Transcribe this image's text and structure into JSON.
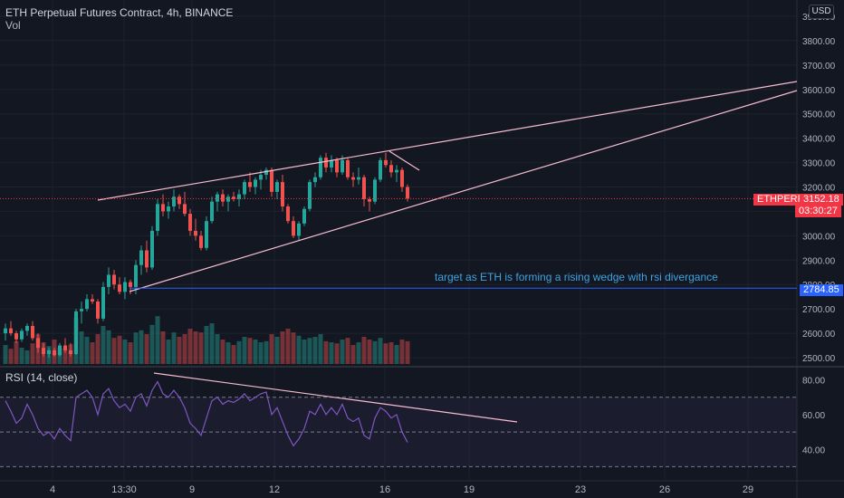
{
  "header": {
    "title": "ETH Perpetual Futures Contract, 4h, BINANCE",
    "volume_label": "Vol"
  },
  "rsi": {
    "label": "RSI (14, close)"
  },
  "currency": "USD",
  "annotation": "target as ETH is forming a rising wedge with rsi divergance",
  "price_axis": [
    "3900.00",
    "3800.00",
    "3700.00",
    "3600.00",
    "3500.00",
    "3400.00",
    "3300.00",
    "3200.00",
    "3100.00",
    "3000.00",
    "2900.00",
    "2800.00",
    "2700.00",
    "2600.00",
    "2500.00"
  ],
  "rsi_axis": [
    "80.00",
    "60.00",
    "40.00"
  ],
  "time_axis": [
    "4",
    "13:30",
    "9",
    "12",
    "16",
    "19",
    "23",
    "26",
    "29"
  ],
  "last_price": {
    "symbol": "ETHPERP",
    "price": "3152.18",
    "countdown": "03:30:27",
    "color": "#f23645"
  },
  "target": {
    "price": "2784.85",
    "color": "#2962ff"
  },
  "colors": {
    "up": "#26a69a",
    "down": "#ef5350",
    "rsi_line": "#7e57c2",
    "trendline": "#f8bbd0",
    "background": "#131722"
  },
  "chart_data": {
    "type": "candlestick",
    "price_ylim": [
      2500,
      3900
    ],
    "candles": [
      [
        2600,
        2640,
        2570,
        2620
      ],
      [
        2620,
        2650,
        2590,
        2600
      ],
      [
        2600,
        2610,
        2560,
        2575
      ],
      [
        2575,
        2620,
        2565,
        2610
      ],
      [
        2610,
        2640,
        2590,
        2630
      ],
      [
        2630,
        2650,
        2570,
        2580
      ],
      [
        2580,
        2600,
        2520,
        2540
      ],
      [
        2540,
        2560,
        2505,
        2515
      ],
      [
        2515,
        2540,
        2500,
        2530
      ],
      [
        2530,
        2540,
        2505,
        2510
      ],
      [
        2510,
        2560,
        2505,
        2550
      ],
      [
        2550,
        2580,
        2520,
        2530
      ],
      [
        2530,
        2560,
        2505,
        2515
      ],
      [
        2515,
        2700,
        2510,
        2690
      ],
      [
        2690,
        2730,
        2640,
        2700
      ],
      [
        2700,
        2760,
        2690,
        2740
      ],
      [
        2740,
        2760,
        2720,
        2730
      ],
      [
        2730,
        2740,
        2640,
        2660
      ],
      [
        2660,
        2810,
        2650,
        2790
      ],
      [
        2790,
        2870,
        2760,
        2840
      ],
      [
        2840,
        2860,
        2780,
        2800
      ],
      [
        2800,
        2830,
        2760,
        2770
      ],
      [
        2770,
        2830,
        2740,
        2810
      ],
      [
        2810,
        2820,
        2760,
        2790
      ],
      [
        2790,
        2900,
        2760,
        2880
      ],
      [
        2880,
        2960,
        2840,
        2940
      ],
      [
        2940,
        2980,
        2850,
        2870
      ],
      [
        2870,
        3040,
        2860,
        3020
      ],
      [
        3020,
        3150,
        3000,
        3130
      ],
      [
        3130,
        3170,
        3080,
        3100
      ],
      [
        3100,
        3140,
        3070,
        3120
      ],
      [
        3120,
        3190,
        3100,
        3160
      ],
      [
        3160,
        3170,
        3110,
        3130
      ],
      [
        3130,
        3180,
        3080,
        3090
      ],
      [
        3090,
        3110,
        3000,
        3020
      ],
      [
        3020,
        3070,
        2980,
        3000
      ],
      [
        3000,
        3020,
        2940,
        2950
      ],
      [
        2950,
        3080,
        2940,
        3060
      ],
      [
        3060,
        3160,
        3050,
        3140
      ],
      [
        3140,
        3180,
        3100,
        3170
      ],
      [
        3170,
        3190,
        3120,
        3140
      ],
      [
        3140,
        3170,
        3100,
        3160
      ],
      [
        3160,
        3180,
        3140,
        3150
      ],
      [
        3150,
        3190,
        3120,
        3170
      ],
      [
        3170,
        3230,
        3150,
        3220
      ],
      [
        3220,
        3260,
        3180,
        3200
      ],
      [
        3200,
        3240,
        3170,
        3230
      ],
      [
        3230,
        3270,
        3190,
        3250
      ],
      [
        3250,
        3280,
        3230,
        3270
      ],
      [
        3270,
        3280,
        3160,
        3180
      ],
      [
        3180,
        3230,
        3150,
        3220
      ],
      [
        3220,
        3250,
        3100,
        3120
      ],
      [
        3120,
        3130,
        3050,
        3060
      ],
      [
        3060,
        3080,
        2990,
        3000
      ],
      [
        3000,
        3060,
        2980,
        3050
      ],
      [
        3050,
        3120,
        3040,
        3110
      ],
      [
        3110,
        3230,
        3100,
        3220
      ],
      [
        3220,
        3260,
        3200,
        3240
      ],
      [
        3240,
        3330,
        3230,
        3320
      ],
      [
        3320,
        3340,
        3260,
        3280
      ],
      [
        3280,
        3330,
        3260,
        3310
      ],
      [
        3310,
        3320,
        3240,
        3260
      ],
      [
        3260,
        3330,
        3250,
        3310
      ],
      [
        3310,
        3320,
        3230,
        3240
      ],
      [
        3240,
        3260,
        3200,
        3230
      ],
      [
        3230,
        3280,
        3210,
        3240
      ],
      [
        3240,
        3250,
        3120,
        3150
      ],
      [
        3150,
        3160,
        3100,
        3140
      ],
      [
        3140,
        3240,
        3130,
        3230
      ],
      [
        3230,
        3320,
        3220,
        3310
      ],
      [
        3310,
        3340,
        3280,
        3290
      ],
      [
        3290,
        3310,
        3240,
        3260
      ],
      [
        3260,
        3290,
        3220,
        3270
      ],
      [
        3270,
        3280,
        3180,
        3200
      ],
      [
        3200,
        3210,
        3140,
        3152.18
      ]
    ],
    "volumes": [
      0.35,
      0.28,
      0.42,
      0.3,
      0.25,
      0.38,
      0.55,
      0.4,
      0.33,
      0.45,
      0.3,
      0.28,
      0.36,
      0.85,
      0.6,
      0.5,
      0.4,
      0.55,
      0.7,
      0.62,
      0.48,
      0.52,
      0.45,
      0.4,
      0.58,
      0.62,
      0.55,
      0.72,
      0.88,
      0.6,
      0.45,
      0.58,
      0.5,
      0.55,
      0.65,
      0.6,
      0.58,
      0.7,
      0.75,
      0.55,
      0.45,
      0.4,
      0.35,
      0.42,
      0.5,
      0.48,
      0.45,
      0.4,
      0.42,
      0.55,
      0.5,
      0.6,
      0.65,
      0.58,
      0.52,
      0.45,
      0.48,
      0.5,
      0.55,
      0.42,
      0.4,
      0.38,
      0.45,
      0.48,
      0.35,
      0.4,
      0.5,
      0.45,
      0.42,
      0.48,
      0.38,
      0.4,
      0.35,
      0.45,
      0.42
    ],
    "rsi_ylim": [
      25,
      85
    ],
    "rsi": [
      68,
      62,
      55,
      58,
      66,
      60,
      52,
      48,
      50,
      46,
      52,
      48,
      45,
      70,
      72,
      74,
      70,
      60,
      72,
      75,
      68,
      64,
      66,
      62,
      70,
      72,
      65,
      74,
      79,
      72,
      70,
      74,
      70,
      64,
      55,
      52,
      48,
      58,
      68,
      70,
      66,
      68,
      67,
      69,
      72,
      68,
      70,
      72,
      73,
      60,
      64,
      56,
      48,
      42,
      46,
      52,
      62,
      60,
      66,
      60,
      64,
      60,
      66,
      58,
      56,
      58,
      48,
      46,
      58,
      64,
      62,
      58,
      60,
      50,
      44
    ]
  }
}
